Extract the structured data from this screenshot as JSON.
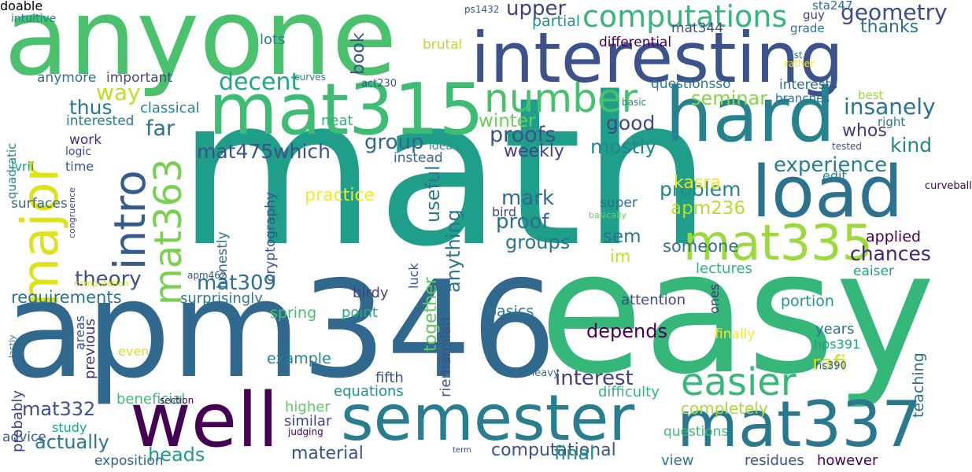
{
  "words": [
    {
      "text": "math",
      "color": "#1f9e89",
      "vertical": false
    },
    {
      "text": "easy",
      "color": "#35b779",
      "vertical": false
    },
    {
      "text": "apm346",
      "color": "#31688e",
      "vertical": false
    },
    {
      "text": "anyone",
      "color": "#4ac16d",
      "vertical": false
    },
    {
      "text": "interesting",
      "color": "#3b528b",
      "vertical": false
    },
    {
      "text": "major",
      "color": "#dde318",
      "vertical": true
    },
    {
      "text": "mat315",
      "color": "#3fbc73",
      "vertical": false
    },
    {
      "text": "hard",
      "color": "#26828e",
      "vertical": false
    },
    {
      "text": "load",
      "color": "#2c728e",
      "vertical": false
    },
    {
      "text": "well",
      "color": "#440154",
      "vertical": false
    },
    {
      "text": "semester",
      "color": "#287d8e",
      "vertical": false
    },
    {
      "text": "mat337",
      "color": "#2a788e",
      "vertical": false
    },
    {
      "text": "intro",
      "color": "#365c8d",
      "vertical": true
    },
    {
      "text": "mat363",
      "color": "#7ad151",
      "vertical": true
    },
    {
      "text": "mat335",
      "color": "#9bd93c",
      "vertical": false
    },
    {
      "text": "easier",
      "color": "#37b878",
      "vertical": false
    },
    {
      "text": "number",
      "color": "#48c16e",
      "vertical": false
    },
    {
      "text": "computations",
      "color": "#35b779",
      "vertical": false
    },
    {
      "text": "geometry",
      "color": "#3e4a89",
      "vertical": false
    },
    {
      "text": "decent",
      "color": "#22a785",
      "vertical": false
    },
    {
      "text": "way",
      "color": "#bddf26",
      "vertical": false
    },
    {
      "text": "far",
      "color": "#2c728e",
      "vertical": false
    },
    {
      "text": "thus",
      "color": "#2a788e",
      "vertical": false
    },
    {
      "text": "mat475which",
      "color": "#3b528b",
      "vertical": false
    },
    {
      "text": "upper",
      "color": "#424086",
      "vertical": false
    },
    {
      "text": "insanely",
      "color": "#2c728e",
      "vertical": false
    },
    {
      "text": "seminar",
      "color": "#86d549",
      "vertical": false
    },
    {
      "text": "good",
      "color": "#3e4989",
      "vertical": false
    },
    {
      "text": "mostly",
      "color": "#24868e",
      "vertical": false
    },
    {
      "text": "proofs",
      "color": "#3b528b",
      "vertical": false
    },
    {
      "text": "group",
      "color": "#31688e",
      "vertical": false
    },
    {
      "text": "kind",
      "color": "#25838e",
      "vertical": false
    },
    {
      "text": "whos",
      "color": "#443b84",
      "vertical": false
    },
    {
      "text": "experience",
      "color": "#277f8e",
      "vertical": false
    },
    {
      "text": "thanks",
      "color": "#2b748e",
      "vertical": false
    },
    {
      "text": "winter",
      "color": "#6ccd5a",
      "vertical": false
    },
    {
      "text": "weekly",
      "color": "#414487",
      "vertical": false
    },
    {
      "text": "partial",
      "color": "#20928c",
      "vertical": false
    },
    {
      "text": "book",
      "color": "#3b528b",
      "vertical": true
    },
    {
      "text": "lots",
      "color": "#26828e",
      "vertical": false
    },
    {
      "text": "anymore",
      "color": "#2c728e",
      "vertical": false
    },
    {
      "text": "important",
      "color": "#3f4889",
      "vertical": false
    },
    {
      "text": "classical",
      "color": "#25848e",
      "vertical": false
    },
    {
      "text": "interested",
      "color": "#297a8e",
      "vertical": false
    },
    {
      "text": "neat",
      "color": "#2fb47c",
      "vertical": false
    },
    {
      "text": "work",
      "color": "#472c7a",
      "vertical": false
    },
    {
      "text": "logic",
      "color": "#3e4a89",
      "vertical": false
    },
    {
      "text": "time",
      "color": "#3b528b",
      "vertical": false
    },
    {
      "text": "ivrii",
      "color": "#1fa088",
      "vertical": false
    },
    {
      "text": "instead",
      "color": "#31688e",
      "vertical": false
    },
    {
      "text": "idea",
      "color": "#1f968b",
      "vertical": false
    },
    {
      "text": "surfaces",
      "color": "#30698e",
      "vertical": false
    },
    {
      "text": "practice",
      "color": "#fde725",
      "vertical": false
    },
    {
      "text": "theory",
      "color": "#3b528b",
      "vertical": false
    },
    {
      "text": "mat309",
      "color": "#2d708e",
      "vertical": false
    },
    {
      "text": "requirements",
      "color": "#2c728e",
      "vertical": false
    },
    {
      "text": "useful",
      "color": "#2a778e",
      "vertical": true
    },
    {
      "text": "anything",
      "color": "#2c738e",
      "vertical": true
    },
    {
      "text": "mark",
      "color": "#31688e",
      "vertical": false
    },
    {
      "text": "proof",
      "color": "#2d708e",
      "vertical": false
    },
    {
      "text": "groups",
      "color": "#2b758e",
      "vertical": false
    },
    {
      "text": "problem",
      "color": "#24868e",
      "vertical": false
    },
    {
      "text": "apm236",
      "color": "#b5de2b",
      "vertical": false
    },
    {
      "text": "sem",
      "color": "#2c728e",
      "vertical": false
    },
    {
      "text": "im",
      "color": "#c2df23",
      "vertical": false
    },
    {
      "text": "someone",
      "color": "#2c728e",
      "vertical": false
    },
    {
      "text": "chances",
      "color": "#482173",
      "vertical": false
    },
    {
      "text": "applied",
      "color": "#440154",
      "vertical": false
    },
    {
      "text": "kasra",
      "color": "#f1e51d",
      "vertical": false
    },
    {
      "text": "edit",
      "color": "#25858e",
      "vertical": false
    },
    {
      "text": "super",
      "color": "#2e6e8e",
      "vertical": false
    },
    {
      "text": "bird",
      "color": "#3e4a89",
      "vertical": false
    },
    {
      "text": "basically",
      "color": "#6ccd5a",
      "vertical": false
    },
    {
      "text": "honestly",
      "color": "#2c728e",
      "vertical": true
    },
    {
      "text": "cryptography",
      "color": "#3b528b",
      "vertical": true
    },
    {
      "text": "surprisingly",
      "color": "#2a788e",
      "vertical": false
    },
    {
      "text": "spring",
      "color": "#48c16e",
      "vertical": false
    },
    {
      "text": "point",
      "color": "#24aa83",
      "vertical": false
    },
    {
      "text": "birdy",
      "color": "#424086",
      "vertical": false
    },
    {
      "text": "together",
      "color": "#5ec962",
      "vertical": true
    },
    {
      "text": "luck",
      "color": "#3b528b",
      "vertical": true
    },
    {
      "text": "basics",
      "color": "#2a768e",
      "vertical": false
    },
    {
      "text": "attention",
      "color": "#3e4989",
      "vertical": false
    },
    {
      "text": "portion",
      "color": "#1f9a8a",
      "vertical": false
    },
    {
      "text": "lectures",
      "color": "#2fb47c",
      "vertical": false
    },
    {
      "text": "eaiser",
      "color": "#20a386",
      "vertical": false
    },
    {
      "text": "ones",
      "color": "#46337e",
      "vertical": true
    },
    {
      "text": "depends",
      "color": "#440154",
      "vertical": false
    },
    {
      "text": "finally",
      "color": "#fde725",
      "vertical": false
    },
    {
      "text": "years",
      "color": "#2d708e",
      "vertical": false
    },
    {
      "text": "hps391",
      "color": "#1fa088",
      "vertical": false
    },
    {
      "text": "teaching",
      "color": "#2f6c8e",
      "vertical": true
    },
    {
      "text": "riemannian",
      "color": "#3b528b",
      "vertical": true
    },
    {
      "text": "example",
      "color": "#26828e",
      "vertical": false
    },
    {
      "text": "even",
      "color": "#dae319",
      "vertical": false
    },
    {
      "text": "previous",
      "color": "#472d7b",
      "vertical": true
    },
    {
      "text": "areas",
      "color": "#3a548c",
      "vertical": true
    },
    {
      "text": "lastly",
      "color": "#2a788e",
      "vertical": true
    },
    {
      "text": "interest",
      "color": "#433e85",
      "vertical": false
    },
    {
      "text": "rafi",
      "color": "#c5e021",
      "vertical": false
    },
    {
      "text": "fifth",
      "color": "#3a548c",
      "vertical": false
    },
    {
      "text": "heavy",
      "color": "#2d708e",
      "vertical": false
    },
    {
      "text": "hs390",
      "color": "#3b528b",
      "vertical": false
    },
    {
      "text": "equations",
      "color": "#20928c",
      "vertical": false
    },
    {
      "text": "difficulty",
      "color": "#32b67a",
      "vertical": false
    },
    {
      "text": "completely",
      "color": "#a8db34",
      "vertical": false
    },
    {
      "text": "beneficial",
      "color": "#3fbc73",
      "vertical": false
    },
    {
      "text": "section",
      "color": "#440154",
      "vertical": false
    },
    {
      "text": "mat332",
      "color": "#3b528b",
      "vertical": false
    },
    {
      "text": "higher",
      "color": "#5ec962",
      "vertical": false
    },
    {
      "text": "similar",
      "color": "#414487",
      "vertical": false
    },
    {
      "text": "judging",
      "color": "#440154",
      "vertical": false
    },
    {
      "text": "actually",
      "color": "#2a788e",
      "vertical": false
    },
    {
      "text": "study",
      "color": "#1fa188",
      "vertical": false
    },
    {
      "text": "advice",
      "color": "#38598c",
      "vertical": false
    },
    {
      "text": "probably",
      "color": "#414487",
      "vertical": true
    },
    {
      "text": "exposition",
      "color": "#33638d",
      "vertical": false
    },
    {
      "text": "heads",
      "color": "#1f9a8a",
      "vertical": false
    },
    {
      "text": "material",
      "color": "#3b528b",
      "vertical": false
    },
    {
      "text": "computational",
      "color": "#3b528b",
      "vertical": false
    },
    {
      "text": "term",
      "color": "#3f4788",
      "vertical": false
    },
    {
      "text": "final",
      "color": "#21918c",
      "vertical": false
    },
    {
      "text": "questions",
      "color": "#3fbc73",
      "vertical": false
    },
    {
      "text": "view",
      "color": "#2a788e",
      "vertical": false
    },
    {
      "text": "residues",
      "color": "#3b528b",
      "vertical": false
    },
    {
      "text": "however",
      "color": "#440154",
      "vertical": false
    },
    {
      "text": "intuitive",
      "color": "#26828e",
      "vertical": false
    },
    {
      "text": "ps1432",
      "color": "#3b528b",
      "vertical": false
    },
    {
      "text": "sta247",
      "color": "#2e6e8e",
      "vertical": false
    },
    {
      "text": "guy",
      "color": "#433e85",
      "vertical": false
    },
    {
      "text": "grade",
      "color": "#2c728e",
      "vertical": false
    },
    {
      "text": "list",
      "color": "#2c728e",
      "vertical": false
    },
    {
      "text": "rather",
      "color": "#fde725",
      "vertical": false
    },
    {
      "text": "mat344",
      "color": "#3b528b",
      "vertical": false
    },
    {
      "text": "differential",
      "color": "#440154",
      "vertical": false
    },
    {
      "text": "brutal",
      "color": "#b8de29",
      "vertical": false
    },
    {
      "text": "curves",
      "color": "#287d8e",
      "vertical": false
    },
    {
      "text": "act230",
      "color": "#3b528b",
      "vertical": false
    },
    {
      "text": "questionsso",
      "color": "#2a788e",
      "vertical": false
    },
    {
      "text": "interests",
      "color": "#31688e",
      "vertical": false
    },
    {
      "text": "branches",
      "color": "#2c728e",
      "vertical": false
    },
    {
      "text": "best",
      "color": "#a0da39",
      "vertical": false
    },
    {
      "text": "basic",
      "color": "#26828e",
      "vertical": false
    },
    {
      "text": "right",
      "color": "#2c728e",
      "vertical": false
    },
    {
      "text": "tested",
      "color": "#3b528b",
      "vertical": false
    },
    {
      "text": "curveball",
      "color": "#440154",
      "vertical": false
    },
    {
      "text": "quadratic",
      "color": "#25848e",
      "vertical": true
    },
    {
      "text": "congruence",
      "color": "#414487",
      "vertical": true
    },
    {
      "text": "computation",
      "color": "#d8e219",
      "vertical": false
    },
    {
      "text": "apm462",
      "color": "#3b528b",
      "vertical": false
    },
    {
      "text": "doable",
      "color": "#9fda3a",
      "vertical": true
    }
  ]
}
